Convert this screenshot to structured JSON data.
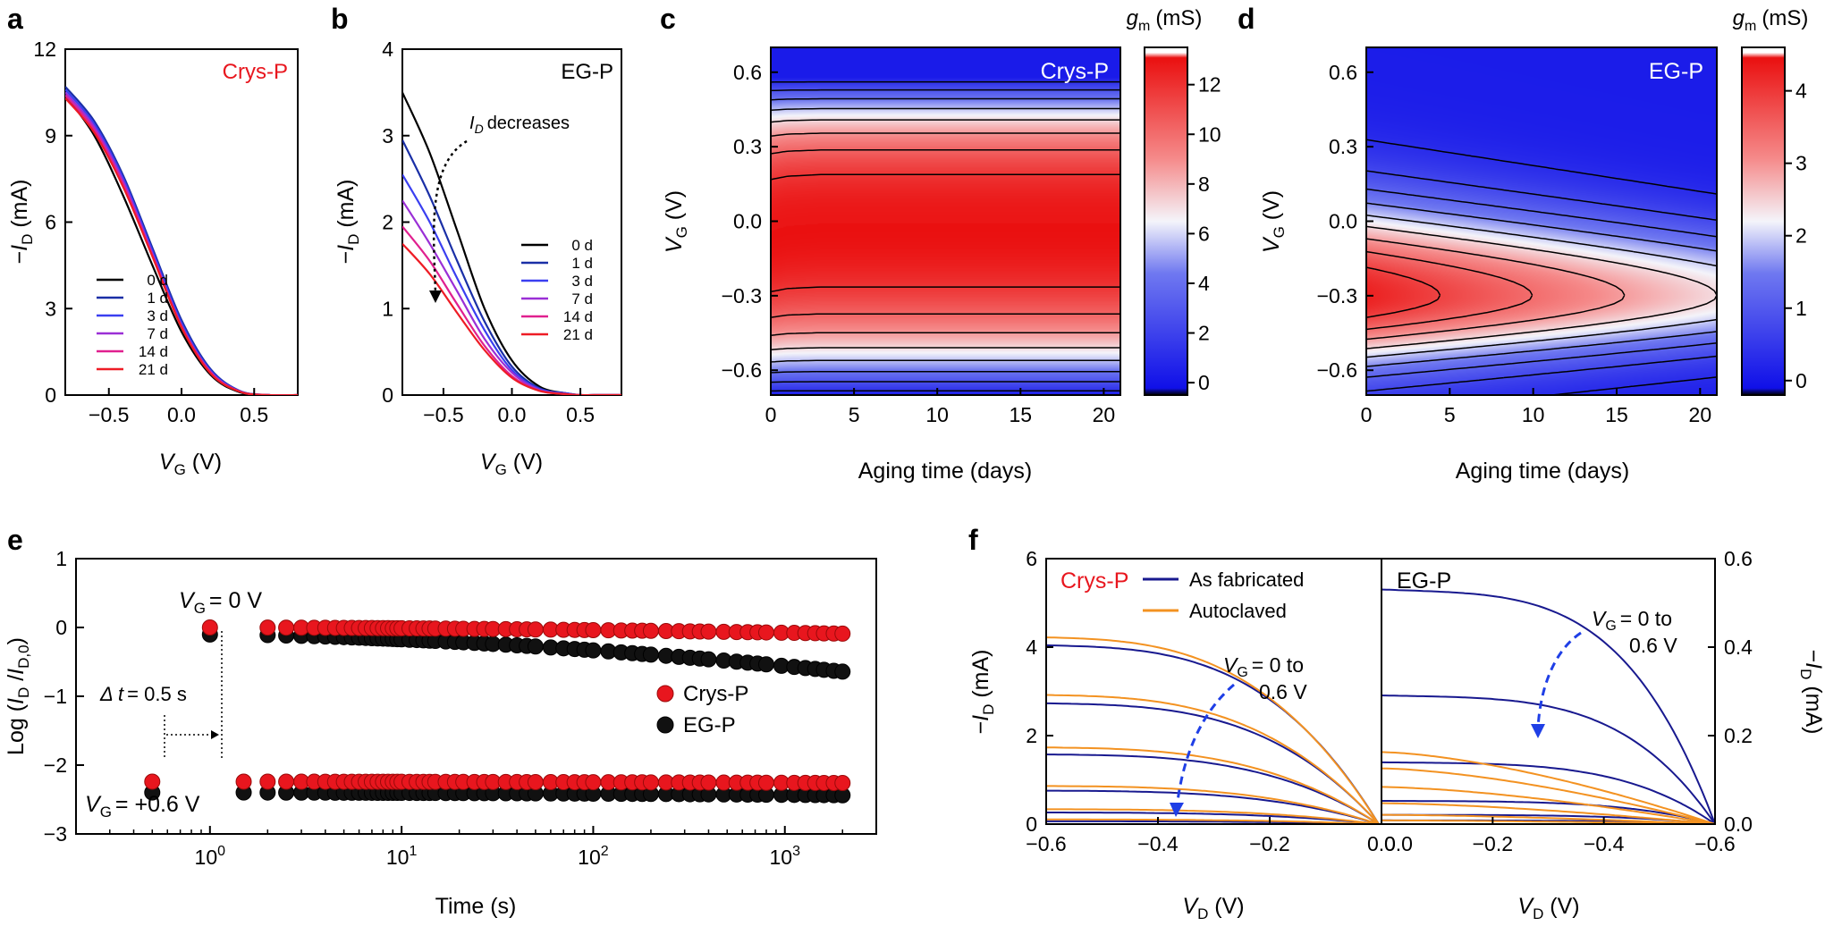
{
  "panels": {
    "a": {
      "letter": "a",
      "chart_data": {
        "type": "line",
        "title": "Crys-P",
        "xlabel": "V_G (V)",
        "ylabel": "−I_D (mA)",
        "xlim": [
          -0.8,
          0.8
        ],
        "ylim": [
          0,
          12
        ],
        "xticks": [
          -0.5,
          0.0,
          0.5
        ],
        "yticks": [
          0,
          3,
          6,
          9,
          12
        ],
        "xticklabels": [
          "−0.5",
          "0.0",
          "0.5"
        ],
        "yticklabels": [
          "0",
          "3",
          "6",
          "9",
          "12"
        ],
        "legend_position": "lower-left",
        "series": [
          {
            "name": "0 d",
            "color": "#000000",
            "x": [
              -0.8,
              -0.6,
              -0.4,
              -0.2,
              0.0,
              0.2,
              0.4,
              0.6,
              0.8
            ],
            "y": [
              10.4,
              9.0,
              6.9,
              4.5,
              2.2,
              0.7,
              0.1,
              0,
              0
            ]
          },
          {
            "name": "1 d",
            "color": "#1a2fa6",
            "x": [
              -0.8,
              -0.6,
              -0.4,
              -0.2,
              0.0,
              0.2,
              0.4,
              0.6,
              0.8
            ],
            "y": [
              10.7,
              9.5,
              7.6,
              5.1,
              2.6,
              0.9,
              0.15,
              0,
              0
            ]
          },
          {
            "name": "3 d",
            "color": "#3a3ff0",
            "x": [
              -0.8,
              -0.6,
              -0.4,
              -0.2,
              0.0,
              0.2,
              0.4,
              0.6,
              0.8
            ],
            "y": [
              10.6,
              9.4,
              7.5,
              5.0,
              2.5,
              0.85,
              0.14,
              0,
              0
            ]
          },
          {
            "name": "7 d",
            "color": "#9a2fd6",
            "x": [
              -0.8,
              -0.6,
              -0.4,
              -0.2,
              0.0,
              0.2,
              0.4,
              0.6,
              0.8
            ],
            "y": [
              10.5,
              9.3,
              7.4,
              4.9,
              2.4,
              0.8,
              0.13,
              0,
              0
            ]
          },
          {
            "name": "14 d",
            "color": "#e0208f",
            "x": [
              -0.8,
              -0.6,
              -0.4,
              -0.2,
              0.0,
              0.2,
              0.4,
              0.6,
              0.8
            ],
            "y": [
              10.4,
              9.2,
              7.3,
              4.85,
              2.4,
              0.8,
              0.12,
              0,
              0
            ]
          },
          {
            "name": "21 d",
            "color": "#ee1c25",
            "x": [
              -0.8,
              -0.6,
              -0.4,
              -0.2,
              0.0,
              0.2,
              0.4,
              0.6,
              0.8
            ],
            "y": [
              10.3,
              9.1,
              7.2,
              4.8,
              2.35,
              0.75,
              0.12,
              0,
              0
            ]
          }
        ]
      }
    },
    "b": {
      "letter": "b",
      "annotation": "decreases",
      "annotation_sym": "I",
      "annotation_sub": "D",
      "chart_data": {
        "type": "line",
        "title": "EG-P",
        "xlabel": "V_G (V)",
        "ylabel": "−I_D (mA)",
        "xlim": [
          -0.8,
          0.8
        ],
        "ylim": [
          0,
          4
        ],
        "xticks": [
          -0.5,
          0.0,
          0.5
        ],
        "yticks": [
          0,
          1,
          2,
          3,
          4
        ],
        "xticklabels": [
          "−0.5",
          "0.0",
          "0.5"
        ],
        "yticklabels": [
          "0",
          "1",
          "2",
          "3",
          "4"
        ],
        "legend_position": "center-right",
        "series": [
          {
            "name": "0 d",
            "color": "#000000",
            "x": [
              -0.8,
              -0.6,
              -0.4,
              -0.2,
              0.0,
              0.2,
              0.4,
              0.5,
              0.6,
              0.8
            ],
            "y": [
              3.5,
              2.8,
              1.9,
              1.0,
              0.4,
              0.1,
              0.02,
              0,
              0,
              0
            ]
          },
          {
            "name": "1 d",
            "color": "#1a2fa6",
            "x": [
              -0.8,
              -0.6,
              -0.4,
              -0.2,
              0.0,
              0.2,
              0.4,
              0.5,
              0.6,
              0.8
            ],
            "y": [
              2.95,
              2.3,
              1.55,
              0.85,
              0.33,
              0.08,
              0.02,
              0,
              0,
              0
            ]
          },
          {
            "name": "3 d",
            "color": "#3a3ff0",
            "x": [
              -0.8,
              -0.6,
              -0.4,
              -0.2,
              0.0,
              0.2,
              0.4,
              0.5,
              0.6,
              0.8
            ],
            "y": [
              2.55,
              2.0,
              1.35,
              0.75,
              0.29,
              0.07,
              0.02,
              0,
              0,
              0
            ]
          },
          {
            "name": "7 d",
            "color": "#9a2fd6",
            "x": [
              -0.8,
              -0.6,
              -0.4,
              -0.2,
              0.0,
              0.2,
              0.4,
              0.5,
              0.6,
              0.8
            ],
            "y": [
              2.25,
              1.75,
              1.2,
              0.65,
              0.26,
              0.06,
              0.01,
              0,
              0,
              0
            ]
          },
          {
            "name": "14 d",
            "color": "#e0208f",
            "x": [
              -0.8,
              -0.6,
              -0.4,
              -0.2,
              0.0,
              0.2,
              0.4,
              0.5,
              0.6,
              0.8
            ],
            "y": [
              1.95,
              1.55,
              1.05,
              0.57,
              0.22,
              0.05,
              0.01,
              0,
              0,
              0
            ]
          },
          {
            "name": "21 d",
            "color": "#ee1c25",
            "x": [
              -0.8,
              -0.6,
              -0.4,
              -0.2,
              0.0,
              0.2,
              0.4,
              0.5,
              0.6,
              0.8
            ],
            "y": [
              1.75,
              1.4,
              0.95,
              0.52,
              0.2,
              0.05,
              0.01,
              0,
              0,
              0
            ]
          }
        ]
      }
    },
    "c": {
      "letter": "c",
      "colorbar_label": "(mS)",
      "colorbar_sym": "g",
      "colorbar_sub": "m",
      "chart_data": {
        "type": "heatmap",
        "title": "Crys-P",
        "xlabel": "Aging time (days)",
        "ylabel": "V_G (V)",
        "xlim": [
          0,
          21
        ],
        "ylim": [
          -0.7,
          0.7
        ],
        "xticks": [
          0,
          5,
          10,
          15,
          20
        ],
        "yticks": [
          -0.6,
          -0.3,
          0.0,
          0.3,
          0.6
        ],
        "xticklabels": [
          "0",
          "5",
          "10",
          "15",
          "20"
        ],
        "yticklabels": [
          "−0.6",
          "−0.3",
          "0.0",
          "0.3",
          "0.6"
        ],
        "z_label": "g_m (mS)",
        "zlim": [
          -0.5,
          13.5
        ],
        "colorbar_ticks": [
          0,
          2,
          4,
          6,
          8,
          10,
          12
        ],
        "colorbar_ticklabels": [
          "0",
          "2",
          "4",
          "6",
          "8",
          "10",
          "12"
        ],
        "peak_vg_vs_day": {
          "days": [
            0,
            1,
            3,
            21
          ],
          "vg": [
            -0.04,
            -0.02,
            -0.01,
            -0.01
          ]
        },
        "peak_gm_mS": 13.3,
        "profile": {
          "vg_low": -0.7,
          "vg_high": 0.58,
          "floor_mS": 0.2
        },
        "contour_levels_mS": [
          1,
          2.6,
          4.2,
          5.8,
          7.4,
          9.0,
          10.6,
          12.2
        ]
      }
    },
    "d": {
      "letter": "d",
      "colorbar_label": "(mS)",
      "colorbar_sym": "g",
      "colorbar_sub": "m",
      "chart_data": {
        "type": "heatmap",
        "title": "EG-P",
        "xlabel": "Aging time (days)",
        "ylabel": "V_G (V)",
        "xlim": [
          0,
          21
        ],
        "ylim": [
          -0.7,
          0.7
        ],
        "xticks": [
          0,
          5,
          10,
          15,
          20
        ],
        "yticks": [
          -0.6,
          -0.3,
          0.0,
          0.3,
          0.6
        ],
        "xticklabels": [
          "0",
          "5",
          "10",
          "15",
          "20"
        ],
        "yticklabels": [
          "−0.6",
          "−0.3",
          "0.0",
          "0.3",
          "0.6"
        ],
        "z_label": "g_m (mS)",
        "zlim": [
          -0.2,
          4.6
        ],
        "colorbar_ticks": [
          0,
          1,
          2,
          3,
          4
        ],
        "colorbar_ticklabels": [
          "0",
          "1",
          "2",
          "3",
          "4"
        ],
        "peak_gm_vs_day": {
          "days": [
            0,
            21
          ],
          "gm_mS": [
            4.4,
            2.5
          ]
        },
        "peak_vg": -0.3,
        "width_vs_day": {
          "lower_V": [
            0.42,
            0.32
          ],
          "upper_V": [
            0.55,
            0.4
          ]
        },
        "contour_levels_mS": [
          0.25,
          0.7,
          1.15,
          1.6,
          2.05,
          2.5,
          3.0,
          3.5,
          4.0
        ]
      }
    },
    "e": {
      "letter": "e",
      "ann_vg0": "= 0 V",
      "ann_vg06": "= +0.6 V",
      "ann_dt_sym": "Δ t",
      "ann_dt": "= 0.5 s",
      "vg_sym": "V",
      "vg_sub": "G",
      "chart_data": {
        "type": "scatter",
        "xscale": "log",
        "xlabel": "Time (s)",
        "ylabel": "Log (I_D / I_D,0)",
        "xlim": [
          0.2,
          3000
        ],
        "ylim": [
          -3,
          1
        ],
        "xticks": [
          1,
          10,
          100,
          1000
        ],
        "yticks": [
          -3,
          -2,
          -1,
          0,
          1
        ],
        "xticklabels_base": "10",
        "xticklabels_exp": [
          "0",
          "1",
          "2",
          "3"
        ],
        "yticklabels": [
          "−3",
          "−2",
          "−1",
          "0",
          "1"
        ],
        "legend_position": "center-right",
        "time_points_s": [
          0.5,
          1,
          1.5,
          2,
          2.5,
          3,
          3.5,
          4,
          4.5,
          5,
          5.5,
          6,
          6.5,
          7,
          7.5,
          8,
          8.5,
          9,
          9.5,
          10,
          11,
          12,
          13,
          14,
          15,
          17,
          19,
          21,
          24,
          27,
          30,
          35,
          40,
          45,
          50,
          60,
          70,
          80,
          90,
          100,
          120,
          140,
          160,
          180,
          200,
          240,
          280,
          320,
          360,
          400,
          480,
          560,
          640,
          720,
          800,
          960,
          1120,
          1280,
          1440,
          1600,
          1800,
          2000
        ],
        "series": [
          {
            "name": "Crys-P",
            "color": "#e8161e",
            "on_level_start": 0.0,
            "on_level_end": -0.09,
            "off_level_start": -2.24,
            "off_level_end": -2.26
          },
          {
            "name": "EG-P",
            "color": "#111111",
            "on_level_start": -0.05,
            "on_level_end": -0.59,
            "off_level_start": -2.32,
            "off_level_end": -2.36
          }
        ],
        "pulse": {
          "on_vg_V": 0.0,
          "off_vg_V": 0.6,
          "on_starts_s": 1,
          "off_starts_s": 0.5,
          "off_absent_s": 1.0,
          "on_absent_s": 1.5
        }
      }
    },
    "f": {
      "letter": "f",
      "label_left": "Crys-P",
      "label_right": "EG-P",
      "ann_left_a": "= 0 to",
      "ann_left_b": "0.6 V",
      "ann_right_a": "= 0 to",
      "ann_right_b": "0.6 V",
      "vg_sym": "V",
      "vg_sub": "G",
      "chart_data": {
        "type": "line",
        "xlabel": "V_D (V)",
        "ylabel_left": "−I_D (mA)",
        "ylabel_right": "−I_D (mA)",
        "left": {
          "xlim": [
            -0.6,
            0.0
          ],
          "ylim": [
            0,
            6
          ],
          "xticks": [
            -0.6,
            -0.4,
            -0.2,
            0.0
          ],
          "xticklabels": [
            "−0.6",
            "−0.4",
            "−0.2",
            "0.0"
          ],
          "yticks": [
            0,
            2,
            4,
            6
          ],
          "yticklabels": [
            "0",
            "2",
            "4",
            "6"
          ]
        },
        "right": {
          "xlim": [
            0.0,
            -0.6
          ],
          "ylim": [
            0,
            0.6
          ],
          "xticks": [
            0.0,
            -0.2,
            -0.4,
            -0.6
          ],
          "xticklabels": [
            "0.0",
            "−0.2",
            "−0.4",
            "−0.6"
          ],
          "yticks": [
            0,
            0.2,
            0.4,
            0.6
          ],
          "yticklabels": [
            "0.0",
            "0.2",
            "0.4",
            "0.6"
          ]
        },
        "legend": [
          {
            "name": "As fabricated",
            "color": "#18198f"
          },
          {
            "name": "Autoclaved",
            "color": "#f39221"
          }
        ],
        "curves": {
          "crys_fabricated_sat_mA": [
            3.85,
            2.6,
            1.5,
            0.72,
            0.25,
            0.06
          ],
          "crys_autoclaved_sat_mA": [
            4.02,
            2.78,
            1.65,
            0.82,
            0.32,
            0.1
          ],
          "eg_fabricated_sat_mA": [
            0.505,
            0.277,
            0.133,
            0.05,
            0.02,
            0.008
          ],
          "eg_autoclaved_sat_mA": [
            0.155,
            0.12,
            0.08,
            0.045,
            0.02,
            0.008
          ]
        }
      }
    }
  }
}
